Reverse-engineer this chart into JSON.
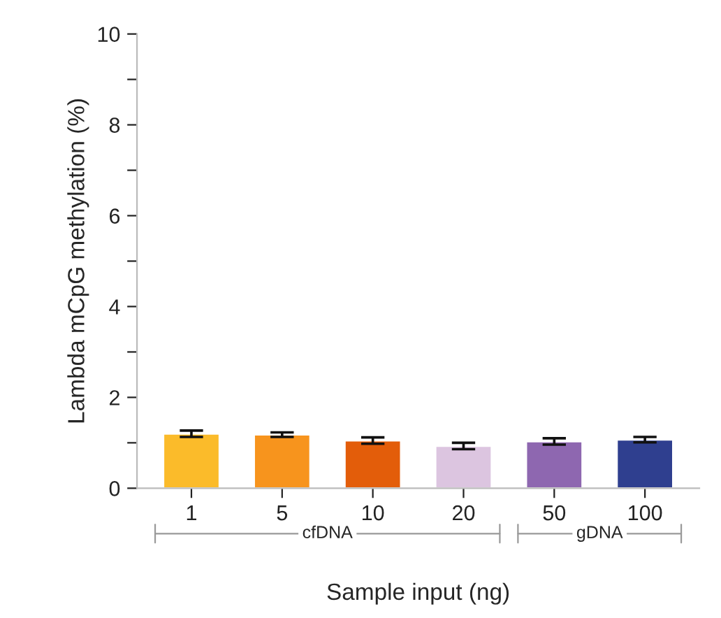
{
  "chart_data": {
    "type": "bar",
    "xlabel": "Sample input (ng)",
    "ylabel": "Lambda mCpG methylation (%)",
    "categories": [
      "1",
      "5",
      "10",
      "20",
      "50",
      "100"
    ],
    "values": [
      1.2,
      1.18,
      1.05,
      0.93,
      1.03,
      1.07
    ],
    "errors": [
      0.07,
      0.05,
      0.07,
      0.07,
      0.07,
      0.06
    ],
    "colors": [
      "#fbbb2a",
      "#f7941d",
      "#e35d0a",
      "#dcc5e0",
      "#8e67b0",
      "#2f3f8f"
    ],
    "ylim": [
      0,
      10
    ],
    "yticks": [
      0,
      {
        "value": 1,
        "label": null
      },
      2,
      {
        "value": 3,
        "label": null
      },
      4,
      {
        "value": 5,
        "label": null
      },
      6,
      {
        "value": 7,
        "label": null
      },
      8,
      {
        "value": 9,
        "label": null
      },
      10
    ],
    "annotations": [
      "cfDNA",
      "gDNA"
    ]
  }
}
